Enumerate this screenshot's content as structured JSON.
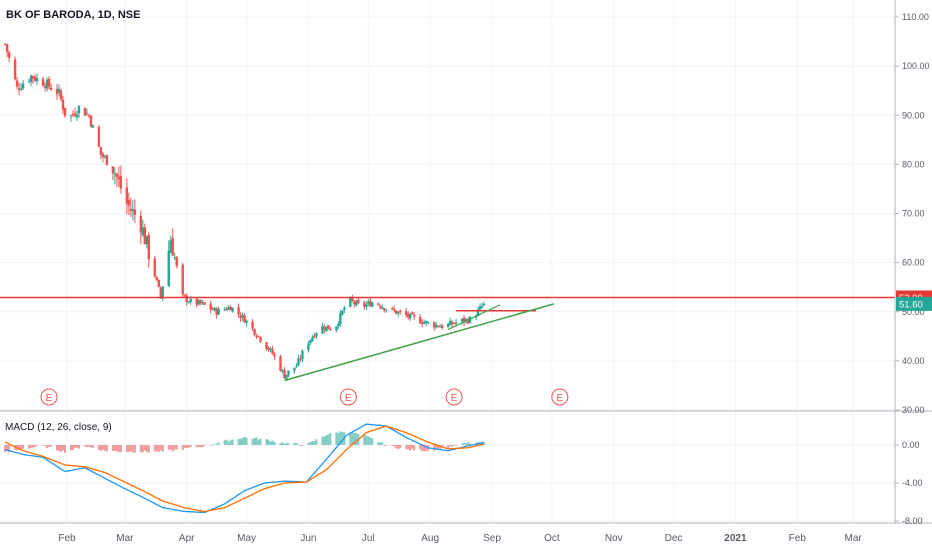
{
  "header": {
    "title": "BK OF BARODA, 1D, NSE"
  },
  "macd": {
    "label": "MACD (12, 26, close, 9)"
  },
  "colors": {
    "up": "#26a69a",
    "down": "#ef5350",
    "resistance": "#e53935",
    "trendline": "#43a047",
    "macd_line": "#2196f3",
    "signal_line": "#ff6d00",
    "last_price_badge": "#26a69a",
    "grid": "#f0f3fa",
    "axis_text": "#555b66"
  },
  "chart_data": [
    {
      "type": "candlestick",
      "title": "BK OF BARODA, 1D, NSE",
      "ylim": [
        30,
        112
      ],
      "y_ticks": [
        "110.00",
        "100.00",
        "90.00",
        "80.00",
        "70.00",
        "60.00",
        "50.00",
        "40.00",
        "30.00"
      ],
      "x_ticks": [
        "Feb",
        "Mar",
        "Apr",
        "May",
        "Jun",
        "Jul",
        "Aug",
        "Sep",
        "Oct",
        "Nov",
        "Dec",
        "2021",
        "Feb",
        "Mar"
      ],
      "price_labels": {
        "resistance": "52.90",
        "last": "51.60"
      },
      "horizontal_line": 52.9,
      "short_resistance": {
        "from": "2020-08-14",
        "to": "2020-09-23",
        "value": 50.2
      },
      "trendline": {
        "from": [
          "2020-05-20",
          36.0
        ],
        "to": [
          "2020-10-02",
          51.6
        ]
      },
      "earnings_markers": [
        "2020-01-23",
        "2020-06-21",
        "2020-08-13",
        "2020-10-05"
      ],
      "earnings_label": "E",
      "series": [
        {
          "x": "2020-01-01",
          "y": 104.5
        },
        {
          "x": "2020-01-07",
          "y": 95.5
        },
        {
          "x": "2020-01-14",
          "y": 98.0
        },
        {
          "x": "2020-01-21",
          "y": 96.5
        },
        {
          "x": "2020-01-28",
          "y": 94.5
        },
        {
          "x": "2020-02-01",
          "y": 89.0
        },
        {
          "x": "2020-02-07",
          "y": 91.5
        },
        {
          "x": "2020-02-12",
          "y": 90.0
        },
        {
          "x": "2020-02-18",
          "y": 82.0
        },
        {
          "x": "2020-02-24",
          "y": 79.5
        },
        {
          "x": "2020-03-02",
          "y": 72.0
        },
        {
          "x": "2020-03-09",
          "y": 68.0
        },
        {
          "x": "2020-03-13",
          "y": 62.0
        },
        {
          "x": "2020-03-19",
          "y": 53.0
        },
        {
          "x": "2020-03-24",
          "y": 65.0
        },
        {
          "x": "2020-03-30",
          "y": 53.0
        },
        {
          "x": "2020-04-03",
          "y": 52.0
        },
        {
          "x": "2020-04-09",
          "y": 51.5
        },
        {
          "x": "2020-04-16",
          "y": 50.0
        },
        {
          "x": "2020-04-23",
          "y": 51.0
        },
        {
          "x": "2020-04-30",
          "y": 48.5
        },
        {
          "x": "2020-05-07",
          "y": 45.0
        },
        {
          "x": "2020-05-14",
          "y": 41.5
        },
        {
          "x": "2020-05-20",
          "y": 37.0
        },
        {
          "x": "2020-05-26",
          "y": 39.0
        },
        {
          "x": "2020-06-01",
          "y": 44.0
        },
        {
          "x": "2020-06-07",
          "y": 47.0
        },
        {
          "x": "2020-06-14",
          "y": 46.5
        },
        {
          "x": "2020-06-21",
          "y": 52.5
        },
        {
          "x": "2020-06-27",
          "y": 51.0
        },
        {
          "x": "2020-07-04",
          "y": 52.0
        },
        {
          "x": "2020-07-11",
          "y": 50.5
        },
        {
          "x": "2020-07-18",
          "y": 49.5
        },
        {
          "x": "2020-07-25",
          "y": 48.5
        },
        {
          "x": "2020-08-01",
          "y": 47.5
        },
        {
          "x": "2020-08-08",
          "y": 47.0
        },
        {
          "x": "2020-08-15",
          "y": 48.0
        },
        {
          "x": "2020-08-22",
          "y": 48.5
        },
        {
          "x": "2020-08-28",
          "y": 51.6
        }
      ]
    },
    {
      "type": "line",
      "title": "MACD (12, 26, close, 9)",
      "ylim": [
        -8.2,
        4.0
      ],
      "y_ticks": [
        "0.00",
        "-4.00",
        "-8.00"
      ],
      "series": [
        {
          "name": "MACD",
          "points": [
            {
              "x": "2020-01-01",
              "y": -0.5
            },
            {
              "x": "2020-01-10",
              "y": -1.0
            },
            {
              "x": "2020-01-20",
              "y": -1.3
            },
            {
              "x": "2020-01-31",
              "y": -2.8
            },
            {
              "x": "2020-02-10",
              "y": -2.4
            },
            {
              "x": "2020-02-20",
              "y": -3.5
            },
            {
              "x": "2020-02-29",
              "y": -4.5
            },
            {
              "x": "2020-03-10",
              "y": -5.5
            },
            {
              "x": "2020-03-20",
              "y": -6.6
            },
            {
              "x": "2020-03-31",
              "y": -7.0
            },
            {
              "x": "2020-04-10",
              "y": -7.1
            },
            {
              "x": "2020-04-20",
              "y": -6.2
            },
            {
              "x": "2020-04-30",
              "y": -4.8
            },
            {
              "x": "2020-05-10",
              "y": -4.0
            },
            {
              "x": "2020-05-20",
              "y": -3.8
            },
            {
              "x": "2020-05-31",
              "y": -3.9
            },
            {
              "x": "2020-06-10",
              "y": -1.5
            },
            {
              "x": "2020-06-20",
              "y": 1.0
            },
            {
              "x": "2020-06-30",
              "y": 2.2
            },
            {
              "x": "2020-07-10",
              "y": 2.0
            },
            {
              "x": "2020-07-20",
              "y": 0.8
            },
            {
              "x": "2020-07-31",
              "y": -0.3
            },
            {
              "x": "2020-08-10",
              "y": -0.6
            },
            {
              "x": "2020-08-20",
              "y": -0.1
            },
            {
              "x": "2020-08-28",
              "y": 0.3
            }
          ]
        },
        {
          "name": "Signal",
          "points": [
            {
              "x": "2020-01-01",
              "y": 0.3
            },
            {
              "x": "2020-01-10",
              "y": -0.6
            },
            {
              "x": "2020-01-20",
              "y": -1.2
            },
            {
              "x": "2020-01-31",
              "y": -2.1
            },
            {
              "x": "2020-02-10",
              "y": -2.3
            },
            {
              "x": "2020-02-20",
              "y": -2.9
            },
            {
              "x": "2020-02-29",
              "y": -3.8
            },
            {
              "x": "2020-03-10",
              "y": -4.8
            },
            {
              "x": "2020-03-20",
              "y": -5.9
            },
            {
              "x": "2020-03-31",
              "y": -6.6
            },
            {
              "x": "2020-04-10",
              "y": -7.0
            },
            {
              "x": "2020-04-20",
              "y": -6.6
            },
            {
              "x": "2020-04-30",
              "y": -5.6
            },
            {
              "x": "2020-05-10",
              "y": -4.6
            },
            {
              "x": "2020-05-20",
              "y": -4.0
            },
            {
              "x": "2020-05-31",
              "y": -3.9
            },
            {
              "x": "2020-06-10",
              "y": -2.6
            },
            {
              "x": "2020-06-20",
              "y": -0.5
            },
            {
              "x": "2020-06-30",
              "y": 1.3
            },
            {
              "x": "2020-07-10",
              "y": 2.0
            },
            {
              "x": "2020-07-20",
              "y": 1.3
            },
            {
              "x": "2020-07-31",
              "y": 0.3
            },
            {
              "x": "2020-08-10",
              "y": -0.4
            },
            {
              "x": "2020-08-20",
              "y": -0.3
            },
            {
              "x": "2020-08-28",
              "y": 0.1
            }
          ]
        }
      ]
    }
  ]
}
